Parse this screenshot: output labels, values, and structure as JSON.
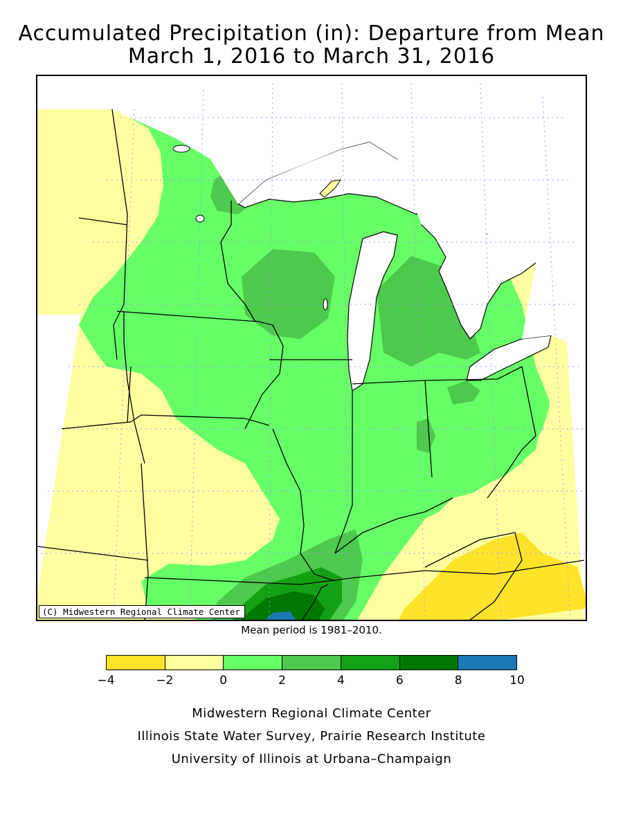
{
  "title_line1": "Accumulated Precipitation (in): Departure from Mean",
  "title_line2": "March 1, 2016 to March 31, 2016",
  "copyright": "(C) Midwestern Regional Climate Center",
  "mean_period": "Mean period is 1981–2010.",
  "legend": {
    "ticks": [
      "−4",
      "−2",
      "0",
      "2",
      "4",
      "6",
      "8",
      "10"
    ],
    "bins": [
      {
        "range": [
          -4,
          -2
        ],
        "color": "#FFE32A"
      },
      {
        "range": [
          -2,
          0
        ],
        "color": "#FFFFA0"
      },
      {
        "range": [
          0,
          2
        ],
        "color": "#66FF66"
      },
      {
        "range": [
          2,
          4
        ],
        "color": "#4DC94D"
      },
      {
        "range": [
          4,
          6
        ],
        "color": "#14A014"
      },
      {
        "range": [
          6,
          8
        ],
        "color": "#007800"
      },
      {
        "range": [
          8,
          10
        ],
        "color": "#1C78B4"
      }
    ]
  },
  "credits": [
    "Midwestern Regional Climate Center",
    "Illinois State Water Survey, Prairie Research Institute",
    "University of Illinois at Urbana–Champaign"
  ]
}
